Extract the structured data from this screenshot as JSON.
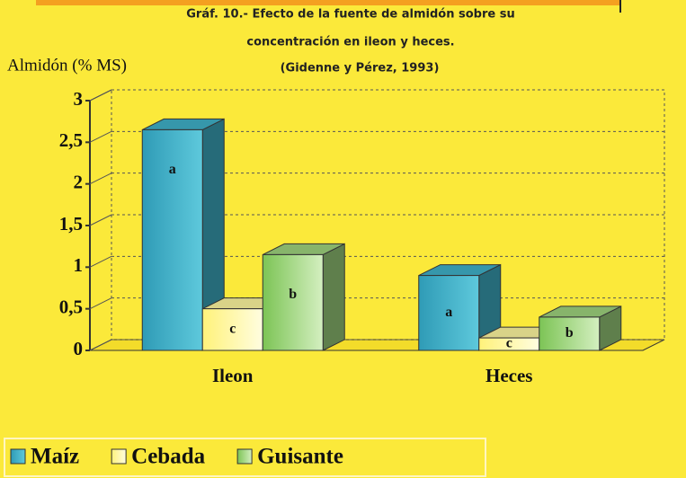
{
  "chart_data": {
    "type": "bar3d",
    "title": [
      "Gráf. 10.- Efecto de la fuente de almidón sobre su",
      "concentración en ileon y heces.",
      "(Gidenne y Pérez, 1993)"
    ],
    "y_label": "Almidón (% MS)",
    "categories": [
      "Ileon",
      "Heces"
    ],
    "series": [
      {
        "name": "Maíz",
        "color": "#3fb2c9",
        "values": [
          2.65,
          0.9
        ],
        "labels": [
          "a",
          "a"
        ]
      },
      {
        "name": "Cebada",
        "color": "#fff8a0",
        "values": [
          0.5,
          0.15
        ],
        "labels": [
          "c",
          "c"
        ]
      },
      {
        "name": "Guisante",
        "color": "#9fd47e",
        "values": [
          1.15,
          0.4
        ],
        "labels": [
          "b",
          "b"
        ]
      }
    ],
    "ylim": [
      0,
      3
    ],
    "yticks": [
      0,
      {
        "value": 0.5,
        "label": "0,5"
      },
      1,
      {
        "value": 1.5,
        "label": "1,5"
      },
      2,
      {
        "value": 2.5,
        "label": "2,5"
      },
      3
    ],
    "grid": true
  }
}
